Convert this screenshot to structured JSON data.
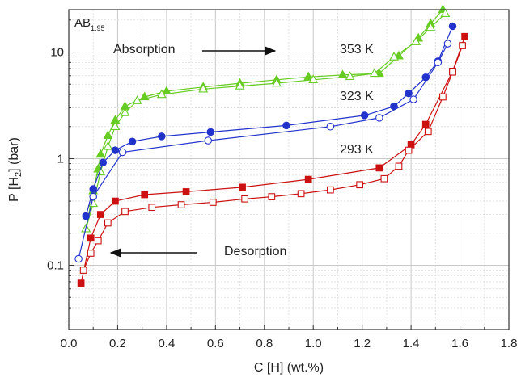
{
  "chart_data": {
    "type": "scatter",
    "xlabel": "C [H] (wt.%)",
    "ylabel_parts": [
      "P [H",
      "2",
      "] (bar)"
    ],
    "xlim": [
      0.0,
      1.8
    ],
    "ylim": [
      0.025,
      25
    ],
    "yscale": "log",
    "grid": true,
    "x_ticks": [
      0.0,
      0.2,
      0.4,
      0.6,
      0.8,
      1.0,
      1.2,
      1.4,
      1.6,
      1.8
    ],
    "x_tick_labels": [
      "0.0",
      "0.2",
      "0.4",
      "0.6",
      "0.8",
      "1.0",
      "1.2",
      "1.4",
      "1.6",
      "1.8"
    ],
    "y_ticks": [
      0.1,
      1,
      10
    ],
    "y_tick_labels": [
      "0.1",
      "1",
      "10"
    ],
    "annotations": {
      "compound": "AB",
      "compound_sub": "1.95",
      "absorption": "Absorption",
      "desorption": "Desorption",
      "t353": "353 K",
      "t323": "323 K",
      "t293": "293 K"
    },
    "series": [
      {
        "temperature": "353 K",
        "mode": "absorption",
        "color": "#66cc22",
        "marker": "triangle",
        "filled": true,
        "points": [
          [
            0.07,
            0.22
          ],
          [
            0.1,
            0.5
          ],
          [
            0.12,
            0.8
          ],
          [
            0.13,
            1.1
          ],
          [
            0.16,
            1.65
          ],
          [
            0.19,
            2.3
          ],
          [
            0.23,
            3.1
          ],
          [
            0.31,
            3.8
          ],
          [
            0.4,
            4.3
          ],
          [
            0.55,
            4.7
          ],
          [
            0.7,
            5.1
          ],
          [
            0.85,
            5.5
          ],
          [
            0.98,
            5.85
          ],
          [
            1.12,
            6.1
          ],
          [
            1.27,
            6.3
          ],
          [
            1.35,
            9.2
          ],
          [
            1.43,
            13.5
          ],
          [
            1.48,
            18.5
          ],
          [
            1.53,
            25
          ]
        ]
      },
      {
        "temperature": "353 K",
        "mode": "desorption",
        "color": "#66cc22",
        "marker": "triangle",
        "filled": false,
        "points": [
          [
            0.07,
            0.22
          ],
          [
            0.1,
            0.38
          ],
          [
            0.13,
            0.75
          ],
          [
            0.16,
            1.3
          ],
          [
            0.19,
            2.0
          ],
          [
            0.23,
            2.7
          ],
          [
            0.28,
            3.5
          ],
          [
            0.38,
            4.0
          ],
          [
            0.55,
            4.5
          ],
          [
            0.7,
            4.8
          ],
          [
            0.85,
            5.1
          ],
          [
            1.0,
            5.5
          ],
          [
            1.15,
            5.9
          ],
          [
            1.25,
            6.3
          ],
          [
            1.33,
            9.0
          ],
          [
            1.42,
            12.5
          ],
          [
            1.48,
            17.0
          ],
          [
            1.54,
            23.0
          ]
        ]
      },
      {
        "temperature": "323 K",
        "mode": "absorption",
        "color": "#2233cc",
        "marker": "circle",
        "filled": true,
        "points": [
          [
            0.07,
            0.29
          ],
          [
            0.1,
            0.52
          ],
          [
            0.14,
            0.92
          ],
          [
            0.19,
            1.2
          ],
          [
            0.26,
            1.45
          ],
          [
            0.38,
            1.62
          ],
          [
            0.58,
            1.78
          ],
          [
            0.89,
            2.05
          ],
          [
            1.21,
            2.55
          ],
          [
            1.33,
            3.1
          ],
          [
            1.39,
            4.1
          ],
          [
            1.46,
            5.8
          ],
          [
            1.51,
            8.2
          ],
          [
            1.57,
            17.5
          ]
        ]
      },
      {
        "temperature": "323 K",
        "mode": "desorption",
        "color": "#2233cc",
        "marker": "circle",
        "filled": false,
        "points": [
          [
            0.04,
            0.115
          ],
          [
            0.1,
            0.44
          ],
          [
            0.22,
            1.15
          ],
          [
            0.57,
            1.48
          ],
          [
            1.07,
            2.0
          ],
          [
            1.27,
            2.42
          ],
          [
            1.41,
            3.6
          ],
          [
            1.51,
            8.0
          ],
          [
            1.55,
            12.0
          ]
        ]
      },
      {
        "temperature": "293 K",
        "mode": "absorption",
        "color": "#cc1111",
        "marker": "square",
        "filled": true,
        "points": [
          [
            0.05,
            0.068
          ],
          [
            0.09,
            0.18
          ],
          [
            0.13,
            0.3
          ],
          [
            0.19,
            0.4
          ],
          [
            0.31,
            0.46
          ],
          [
            0.48,
            0.49
          ],
          [
            0.71,
            0.54
          ],
          [
            0.98,
            0.64
          ],
          [
            1.27,
            0.82
          ],
          [
            1.4,
            1.35
          ],
          [
            1.46,
            2.1
          ],
          [
            1.57,
            6.6
          ],
          [
            1.62,
            14.0
          ]
        ]
      },
      {
        "temperature": "293 K",
        "mode": "desorption",
        "color": "#cc1111",
        "marker": "square",
        "filled": false,
        "points": [
          [
            0.06,
            0.09
          ],
          [
            0.09,
            0.13
          ],
          [
            0.12,
            0.17
          ],
          [
            0.16,
            0.25
          ],
          [
            0.23,
            0.32
          ],
          [
            0.34,
            0.35
          ],
          [
            0.46,
            0.37
          ],
          [
            0.59,
            0.39
          ],
          [
            0.72,
            0.42
          ],
          [
            0.83,
            0.44
          ],
          [
            0.95,
            0.47
          ],
          [
            1.07,
            0.51
          ],
          [
            1.19,
            0.57
          ],
          [
            1.29,
            0.65
          ],
          [
            1.35,
            0.85
          ],
          [
            1.39,
            1.2
          ],
          [
            1.47,
            1.8
          ],
          [
            1.53,
            3.8
          ],
          [
            1.57,
            6.5
          ],
          [
            1.61,
            11.5
          ]
        ]
      }
    ]
  }
}
